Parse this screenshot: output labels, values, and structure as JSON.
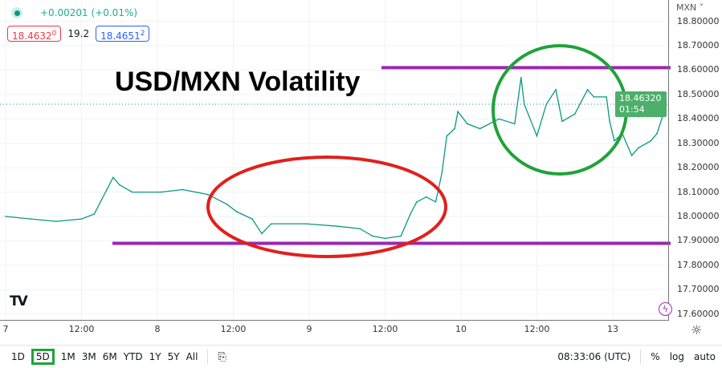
{
  "header": {
    "change": "+0.00201 (+0.01%)",
    "sell": "18.4632",
    "sell_sup": "0",
    "spread": "19.2",
    "buy": "18.4651",
    "buy_sup": "2",
    "currency": "MXN ˅"
  },
  "annotation_title": "USD/MXN Volatility",
  "price_label": {
    "price": "18.46320",
    "countdown": "01:54"
  },
  "colors": {
    "line": "#089981",
    "levels": "#9c27b0",
    "red_ellipse": "#e0201c",
    "green_ellipse": "#1ea339"
  },
  "footer": {
    "ranges": [
      "1D",
      "5D",
      "1M",
      "3M",
      "6M",
      "YTD",
      "1Y",
      "5Y",
      "All"
    ],
    "active": "5D",
    "time": "08:33:06 (UTC)",
    "percent": "%",
    "log": "log",
    "auto": "auto"
  },
  "chart_data": {
    "type": "line",
    "ylim": [
      17.6,
      18.8
    ],
    "y_ticks": [
      "18.80000",
      "18.70000",
      "18.60000",
      "18.50000",
      "18.40000",
      "18.30000",
      "18.20000",
      "18.10000",
      "18.00000",
      "17.90000",
      "17.80000",
      "17.70000",
      "17.60000"
    ],
    "x_ticks": [
      "7",
      "12:00",
      "8",
      "12:00",
      "9",
      "12:00",
      "10",
      "12:00",
      "13"
    ],
    "grid": true,
    "levels": [
      18.61,
      17.89
    ],
    "points": [
      [
        "7 00:00",
        18.0
      ],
      [
        "7 04:00",
        17.99
      ],
      [
        "7 08:00",
        17.98
      ],
      [
        "7 12:00",
        17.99
      ],
      [
        "7 14:00",
        18.01
      ],
      [
        "7 16:00",
        18.11
      ],
      [
        "7 17:00",
        18.16
      ],
      [
        "7 18:00",
        18.13
      ],
      [
        "7 20:00",
        18.1
      ],
      [
        "8 00:30",
        18.1
      ],
      [
        "8 04:00",
        18.11
      ],
      [
        "8 08:00",
        18.09
      ],
      [
        "8 11:00",
        18.05
      ],
      [
        "8 12:30",
        18.02
      ],
      [
        "8 15:00",
        17.99
      ],
      [
        "8 16:30",
        17.93
      ],
      [
        "8 18:00",
        17.97
      ],
      [
        "8 23:30",
        17.97
      ],
      [
        "9 04:30",
        17.96
      ],
      [
        "9 08:00",
        17.95
      ],
      [
        "9 10:00",
        17.92
      ],
      [
        "9 12:00",
        17.91
      ],
      [
        "9 14:30",
        17.92
      ],
      [
        "9 16:00",
        18.01
      ],
      [
        "9 17:00",
        18.06
      ],
      [
        "9 18:30",
        18.08
      ],
      [
        "9 20:00",
        18.06
      ],
      [
        "9 21:00",
        18.18
      ],
      [
        "9 21:45",
        18.33
      ],
      [
        "9 23:00",
        18.36
      ],
      [
        "9 23:30",
        18.43
      ],
      [
        "10 01:00",
        18.38
      ],
      [
        "10 03:00",
        18.36
      ],
      [
        "10 06:00",
        18.4
      ],
      [
        "10 08:30",
        18.38
      ],
      [
        "10 09:30",
        18.57
      ],
      [
        "10 10:00",
        18.46
      ],
      [
        "10 12:00",
        18.33
      ],
      [
        "10 13:30",
        18.46
      ],
      [
        "10 15:00",
        18.52
      ],
      [
        "10 16:00",
        18.39
      ],
      [
        "10 18:00",
        18.42
      ],
      [
        "10 20:00",
        18.52
      ],
      [
        "10 21:00",
        18.49
      ],
      [
        "10 23:00",
        18.49
      ],
      [
        "10 23:30",
        18.39
      ],
      [
        "13 00:15",
        18.31
      ],
      [
        "13 01:30",
        18.34
      ],
      [
        "13 03:00",
        18.25
      ],
      [
        "13 04:00",
        18.28
      ],
      [
        "13 06:00",
        18.31
      ],
      [
        "13 07:00",
        18.34
      ],
      [
        "13 08:30",
        18.46
      ]
    ]
  }
}
